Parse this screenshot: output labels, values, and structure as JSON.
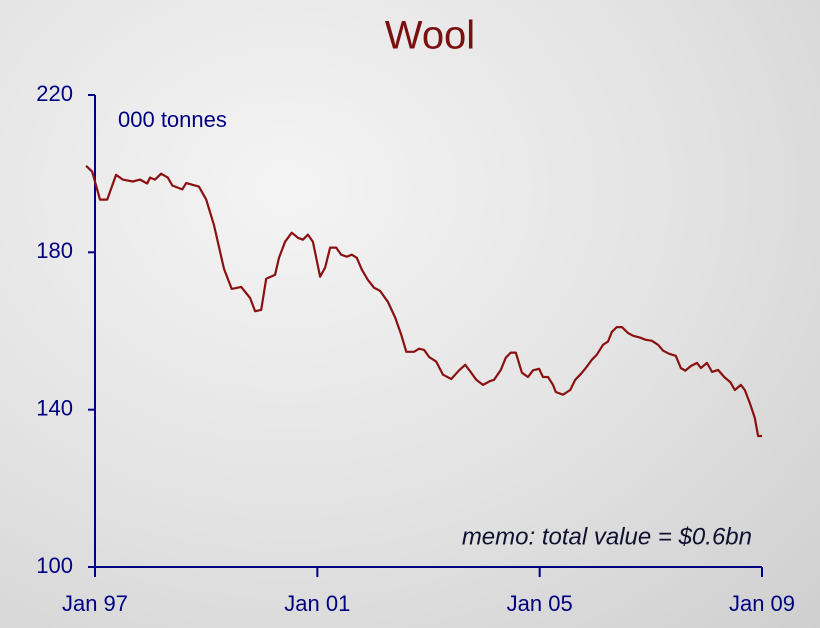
{
  "chart_data": {
    "type": "line",
    "title": "Wool",
    "y_label": "000 tonnes",
    "annotation": "memo: total value = $0.6bn",
    "xlim": [
      1997,
      2009
    ],
    "xticks": [
      {
        "value": 1997,
        "label": "Jan 97"
      },
      {
        "value": 2001,
        "label": "Jan 01"
      },
      {
        "value": 2005,
        "label": "Jan 05"
      },
      {
        "value": 2009,
        "label": "Jan 09"
      }
    ],
    "ylim": [
      100,
      220
    ],
    "yticks": [
      100,
      140,
      180,
      220
    ],
    "grid": false,
    "x": [
      1996.84,
      1996.95,
      1997.09,
      1997.22,
      1997.38,
      1997.5,
      1997.68,
      1997.81,
      1997.94,
      1997.99,
      1998.08,
      1998.19,
      1998.31,
      1998.39,
      1998.57,
      1998.64,
      1998.87,
      1999.0,
      1999.14,
      1999.32,
      1999.46,
      1999.63,
      1999.79,
      1999.88,
      1999.99,
      2000.08,
      2000.24,
      2000.31,
      2000.42,
      2000.54,
      2000.65,
      2000.74,
      2000.83,
      2000.92,
      2001.05,
      2001.14,
      2001.23,
      2001.34,
      2001.43,
      2001.53,
      2001.62,
      2001.71,
      2001.8,
      2001.91,
      2002.02,
      2002.13,
      2002.27,
      2002.4,
      2002.51,
      2002.6,
      2002.74,
      2002.83,
      2002.92,
      2003.01,
      2003.14,
      2003.26,
      2003.41,
      2003.55,
      2003.66,
      2003.73,
      2003.86,
      2003.98,
      2004.11,
      2004.18,
      2004.3,
      2004.39,
      2004.48,
      2004.57,
      2004.68,
      2004.79,
      2004.88,
      2004.99,
      2005.06,
      2005.15,
      2005.24,
      2005.29,
      2005.42,
      2005.55,
      2005.64,
      2005.73,
      2005.83,
      2005.94,
      2006.03,
      2006.14,
      2006.23,
      2006.3,
      2006.39,
      2006.48,
      2006.59,
      2006.68,
      2006.81,
      2006.9,
      2007.02,
      2007.13,
      2007.22,
      2007.33,
      2007.45,
      2007.54,
      2007.62,
      2007.72,
      2007.83,
      2007.9,
      2008.01,
      2008.1,
      2008.21,
      2008.32,
      2008.43,
      2008.51,
      2008.62,
      2008.69,
      2008.78,
      2008.87,
      2008.93,
      2009.0
    ],
    "series": [
      {
        "name": "Wool",
        "color": "#8b1010",
        "values": [
          202,
          200.5,
          193.4,
          193.4,
          199.7,
          198.5,
          198,
          198.5,
          197.5,
          199,
          198.5,
          200,
          199,
          197,
          196,
          197.6,
          196.7,
          193.4,
          187,
          175.8,
          170.7,
          171.2,
          168.4,
          165,
          165.4,
          173.3,
          174.3,
          178.6,
          182.7,
          185,
          183.7,
          183.2,
          184.5,
          182.7,
          173.8,
          176.1,
          181.2,
          181.2,
          179.4,
          178.9,
          179.4,
          178.6,
          175.6,
          173,
          171,
          170.2,
          167.4,
          163.4,
          159,
          154.7,
          154.7,
          155.5,
          155.2,
          153.4,
          152.2,
          148.9,
          147.8,
          150,
          151.4,
          150.1,
          147.6,
          146.3,
          147.3,
          147.6,
          150.1,
          153.2,
          154.5,
          154.5,
          149.4,
          148.3,
          150,
          150.4,
          148.3,
          148.3,
          146.3,
          144.5,
          143.8,
          145,
          147.6,
          148.9,
          150.6,
          152.7,
          154,
          156.5,
          157.3,
          159.8,
          161,
          161,
          159.5,
          158.8,
          158.3,
          157.8,
          157.5,
          156.5,
          155,
          154.2,
          153.7,
          150.6,
          149.9,
          151.1,
          151.9,
          150.6,
          151.9,
          149.6,
          150.1,
          148.3,
          147,
          145,
          146.3,
          145,
          141.7,
          137.9,
          133.3,
          133.3
        ]
      }
    ]
  }
}
